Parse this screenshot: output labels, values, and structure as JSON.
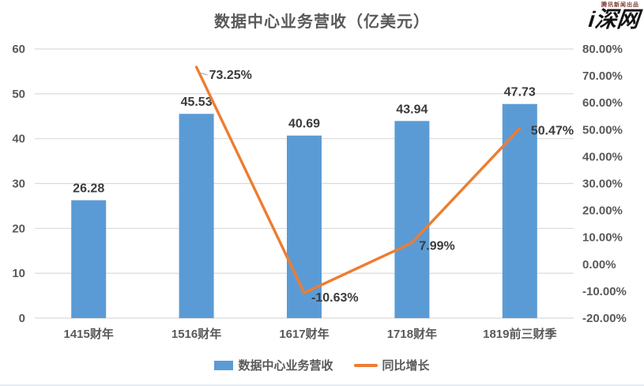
{
  "logo": {
    "text": "i深网",
    "tagline": "腾讯新闻出品"
  },
  "chart_data": {
    "type": "combo_bar_line",
    "title": "数据中心业务营收（亿美元）",
    "categories": [
      "1415财年",
      "1516财年",
      "1617财年",
      "1718财年",
      "1819前三财季"
    ],
    "series": [
      {
        "name": "数据中心业务营收",
        "type": "bar",
        "axis": "left",
        "values": [
          26.28,
          45.53,
          40.69,
          43.94,
          47.73
        ],
        "labels": [
          "26.28",
          "45.53",
          "40.69",
          "43.94",
          "47.73"
        ],
        "color": "#5B9BD5"
      },
      {
        "name": "同比增长",
        "type": "line",
        "axis": "right",
        "values": [
          null,
          73.25,
          -10.63,
          7.99,
          50.47
        ],
        "labels": [
          null,
          "73.25%",
          "-10.63%",
          "7.99%",
          "50.47%"
        ],
        "color": "#ED7D31"
      }
    ],
    "left_axis": {
      "min": 0,
      "max": 60,
      "step": 10,
      "ticks": [
        "0",
        "10",
        "20",
        "30",
        "40",
        "50",
        "60"
      ]
    },
    "right_axis": {
      "min": -20,
      "max": 80,
      "step": 10,
      "ticks": [
        "-20.00%",
        "-10.00%",
        "0.00%",
        "10.00%",
        "20.00%",
        "30.00%",
        "40.00%",
        "50.00%",
        "60.00%",
        "70.00%",
        "80.00%"
      ]
    },
    "grid": true,
    "legend_position": "bottom"
  },
  "colors": {
    "bar": "#5B9BD5",
    "line": "#ED7D31",
    "gridline": "#D9D9D9",
    "axis_text": "#595959",
    "data_label": "#3B3B3B"
  }
}
